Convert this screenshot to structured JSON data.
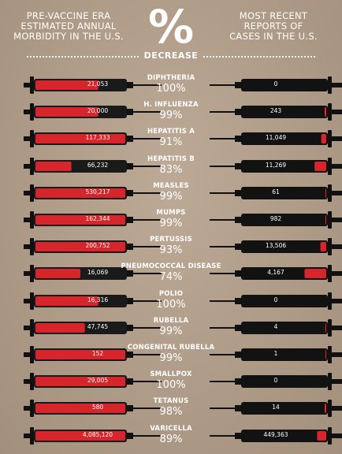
{
  "header": {
    "left_title": "PRE-VACCINE ERA\nESTIMATED ANNUAL\nMORBIDITY IN THE U.S.",
    "symbol": "%",
    "center_title": "DECREASE",
    "right_title": "MOST RECENT\nREPORTS OF\nCASES IN THE U.S."
  },
  "colors": {
    "background": "#b5a08a",
    "pre_fill": "#d6262b",
    "syringe_body": "#121212"
  },
  "rows": [
    {
      "disease": "DIPHTHERIA",
      "pre": "21,053",
      "decrease": "100%",
      "recent": "0",
      "pre_fill": 0.7,
      "recent_fill": 0.0
    },
    {
      "disease": "H. INFLUENZA",
      "pre": "20,000",
      "decrease": "99%",
      "recent": "243",
      "pre_fill": 0.7,
      "recent_fill": 0.02
    },
    {
      "disease": "HEPATITIS A",
      "pre": "117,333",
      "decrease": "91%",
      "recent": "11,049",
      "pre_fill": 1.0,
      "recent_fill": 0.06
    },
    {
      "disease": "HEPATITIS B",
      "pre": "66,232",
      "decrease": "83%",
      "recent": "11,269",
      "pre_fill": 0.4,
      "recent_fill": 0.14
    },
    {
      "disease": "MEASLES",
      "pre": "530,217",
      "decrease": "99%",
      "recent": "61",
      "pre_fill": 1.0,
      "recent_fill": 0.01
    },
    {
      "disease": "MUMPS",
      "pre": "162,344",
      "decrease": "99%",
      "recent": "982",
      "pre_fill": 1.0,
      "recent_fill": 0.01
    },
    {
      "disease": "PERTUSSIS",
      "pre": "200,752",
      "decrease": "93%",
      "recent": "13,506",
      "pre_fill": 1.0,
      "recent_fill": 0.07
    },
    {
      "disease": "PNEUMOCOCCAL DISEASE",
      "pre": "16,069",
      "decrease": "74%",
      "recent": "4,167",
      "pre_fill": 0.5,
      "recent_fill": 0.26
    },
    {
      "disease": "POLIO",
      "pre": "16,316",
      "decrease": "100%",
      "recent": "0",
      "pre_fill": 0.7,
      "recent_fill": 0.0
    },
    {
      "disease": "RUBELLA",
      "pre": "47,745",
      "decrease": "99%",
      "recent": "4",
      "pre_fill": 0.55,
      "recent_fill": 0.01
    },
    {
      "disease": "CONGENITAL RUBELLA",
      "pre": "152",
      "decrease": "99%",
      "recent": "1",
      "pre_fill": 1.0,
      "recent_fill": 0.01
    },
    {
      "disease": "SMALLPOX",
      "pre": "29,005",
      "decrease": "100%",
      "recent": "0",
      "pre_fill": 1.0,
      "recent_fill": 0.0
    },
    {
      "disease": "TETANUS",
      "pre": "580",
      "decrease": "98%",
      "recent": "14",
      "pre_fill": 1.0,
      "recent_fill": 0.02
    },
    {
      "disease": "VARICELLA",
      "pre": "4,085,120",
      "decrease": "89%",
      "recent": "449,363",
      "pre_fill": 1.0,
      "recent_fill": 0.11
    }
  ]
}
